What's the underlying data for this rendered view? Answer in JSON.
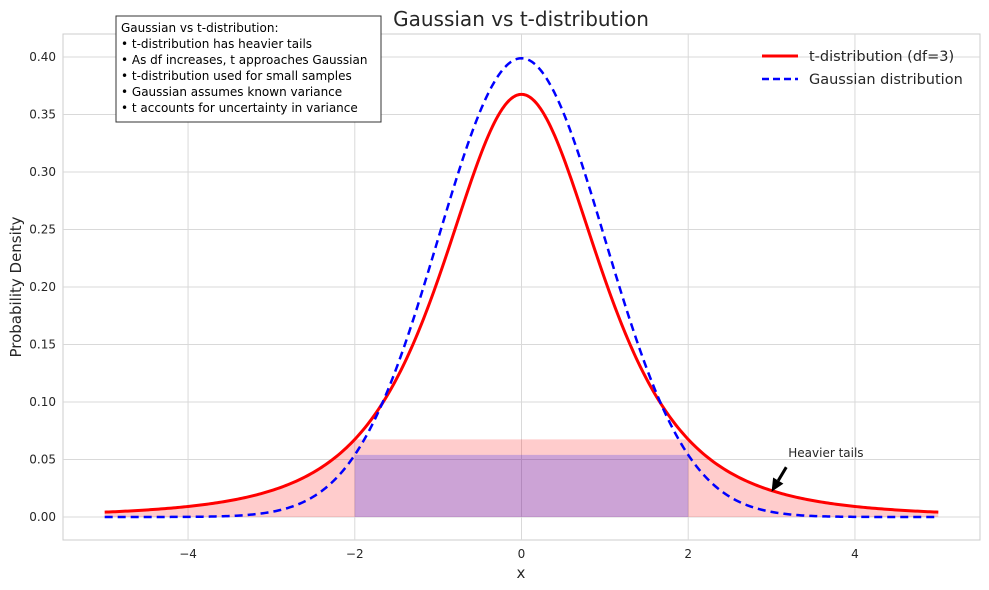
{
  "chart_data": {
    "type": "line",
    "title": "Gaussian vs t-distribution",
    "xlabel": "x",
    "ylabel": "Probability Density",
    "xlim": [
      -5.5,
      5.5
    ],
    "ylim": [
      -0.02,
      0.42
    ],
    "xticks": [
      -4,
      -2,
      0,
      2,
      4
    ],
    "xtick_labels": [
      "−4",
      "−2",
      "0",
      "2",
      "4"
    ],
    "yticks": [
      0.0,
      0.05,
      0.1,
      0.15,
      0.2,
      0.25,
      0.3,
      0.35,
      0.4
    ],
    "ytick_labels": [
      "0.00",
      "0.05",
      "0.10",
      "0.15",
      "0.20",
      "0.25",
      "0.30",
      "0.35",
      "0.40"
    ],
    "grid": true,
    "legend_position": "top-right",
    "series": [
      {
        "name": "t-distribution (df=3)",
        "color": "#ff0000",
        "style": "solid",
        "x": [
          -5.0,
          -4.5,
          -4.0,
          -3.5,
          -3.0,
          -2.5,
          -2.0,
          -1.5,
          -1.0,
          -0.5,
          0.0,
          0.5,
          1.0,
          1.5,
          2.0,
          2.5,
          3.0,
          3.5,
          4.0,
          4.5,
          5.0
        ],
        "y": [
          0.0042,
          0.0062,
          0.0092,
          0.014,
          0.023,
          0.0395,
          0.0675,
          0.116,
          0.2067,
          0.3125,
          0.3676,
          0.3125,
          0.2067,
          0.116,
          0.0675,
          0.0395,
          0.023,
          0.014,
          0.0092,
          0.0062,
          0.0042
        ]
      },
      {
        "name": "Gaussian distribution",
        "color": "#0000ff",
        "style": "dashed",
        "x": [
          -5.0,
          -4.5,
          -4.0,
          -3.5,
          -3.0,
          -2.5,
          -2.0,
          -1.5,
          -1.0,
          -0.5,
          0.0,
          0.5,
          1.0,
          1.5,
          2.0,
          2.5,
          3.0,
          3.5,
          4.0,
          4.5,
          5.0
        ],
        "y": [
          0.0,
          0.0,
          0.0001,
          0.0009,
          0.0044,
          0.0175,
          0.054,
          0.1295,
          0.242,
          0.3521,
          0.3989,
          0.3521,
          0.242,
          0.1295,
          0.054,
          0.0175,
          0.0044,
          0.0009,
          0.0001,
          0.0,
          0.0
        ]
      }
    ],
    "shaded_regions": [
      {
        "series": "t-distribution (df=3)",
        "color": "#ff0000",
        "alpha": 0.2,
        "x_range": [
          -5,
          5
        ],
        "cap": 0.0675
      },
      {
        "series": "Gaussian distribution",
        "color": "#0000ff",
        "alpha": 0.2,
        "x_range": [
          -2,
          2
        ],
        "cap": 0.054
      }
    ],
    "text_box": {
      "lines": [
        "Gaussian vs t-distribution:",
        "• t-distribution has heavier tails",
        "• As df increases, t approaches Gaussian",
        "• t-distribution used for small samples",
        "• Gaussian assumes known variance",
        "• t accounts for uncertainty in variance"
      ]
    },
    "annotation": {
      "text": "Heavier tails",
      "point": [
        3.0,
        0.022
      ],
      "text_pos": [
        3.2,
        0.052
      ]
    }
  }
}
